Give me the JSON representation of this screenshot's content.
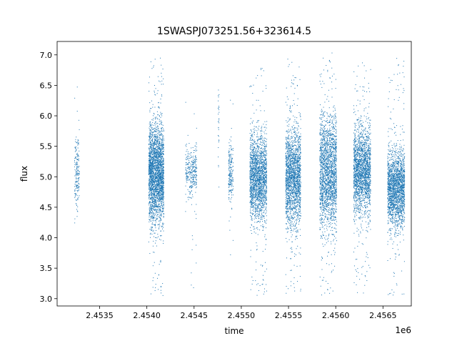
{
  "chart_data": {
    "type": "scatter",
    "title": "1SWASPJ073251.56+323614.5",
    "xlabel": "time",
    "ylabel": "flux",
    "x_offset_label": "1e6",
    "xlim": [
      2.45305,
      2.4568
    ],
    "ylim": [
      2.88,
      7.22
    ],
    "x_ticks": [
      2.4535,
      2.454,
      2.4545,
      2.455,
      2.4555,
      2.456,
      2.4565
    ],
    "x_tick_labels": [
      "2.4535",
      "2.4540",
      "2.4545",
      "2.4550",
      "2.4555",
      "2.4560",
      "2.4565"
    ],
    "y_ticks": [
      3.0,
      3.5,
      4.0,
      4.5,
      5.0,
      5.5,
      6.0,
      6.5,
      7.0
    ],
    "y_tick_labels": [
      "3.0",
      "3.5",
      "4.0",
      "4.5",
      "5.0",
      "5.5",
      "6.0",
      "6.5",
      "7.0"
    ],
    "grid": false,
    "marker_color": "#1f77b4",
    "clusters": [
      {
        "x_center": 2.45326,
        "x_width": 5e-05,
        "y_center": 5.05,
        "y_spread": 0.28,
        "count": 180,
        "y_min": 4.1,
        "y_max": 6.6
      },
      {
        "x_center": 2.4541,
        "x_width": 0.00016,
        "y_center": 5.05,
        "y_spread": 0.4,
        "count": 2600,
        "y_min": 3.05,
        "y_max": 7.0
      },
      {
        "x_center": 2.45447,
        "x_width": 0.00012,
        "y_center": 5.1,
        "y_spread": 0.2,
        "count": 320,
        "y_min": 3.15,
        "y_max": 6.6
      },
      {
        "x_center": 2.45476,
        "x_width": 1e-05,
        "y_center": 5.9,
        "y_spread": 0.35,
        "count": 30,
        "y_min": 4.7,
        "y_max": 6.5
      },
      {
        "x_center": 2.45489,
        "x_width": 5e-05,
        "y_center": 5.05,
        "y_spread": 0.25,
        "count": 200,
        "y_min": 3.4,
        "y_max": 6.4
      },
      {
        "x_center": 2.45518,
        "x_width": 0.00018,
        "y_center": 5.0,
        "y_spread": 0.35,
        "count": 1900,
        "y_min": 3.05,
        "y_max": 6.8
      },
      {
        "x_center": 2.45555,
        "x_width": 0.00016,
        "y_center": 5.0,
        "y_spread": 0.4,
        "count": 1900,
        "y_min": 3.08,
        "y_max": 7.0
      },
      {
        "x_center": 2.45592,
        "x_width": 0.00018,
        "y_center": 5.05,
        "y_spread": 0.45,
        "count": 2000,
        "y_min": 3.05,
        "y_max": 7.05
      },
      {
        "x_center": 2.45628,
        "x_width": 0.00018,
        "y_center": 5.1,
        "y_spread": 0.35,
        "count": 2000,
        "y_min": 3.05,
        "y_max": 6.9
      },
      {
        "x_center": 2.45664,
        "x_width": 0.00018,
        "y_center": 4.8,
        "y_spread": 0.3,
        "count": 2000,
        "y_min": 3.05,
        "y_max": 7.0
      }
    ]
  }
}
